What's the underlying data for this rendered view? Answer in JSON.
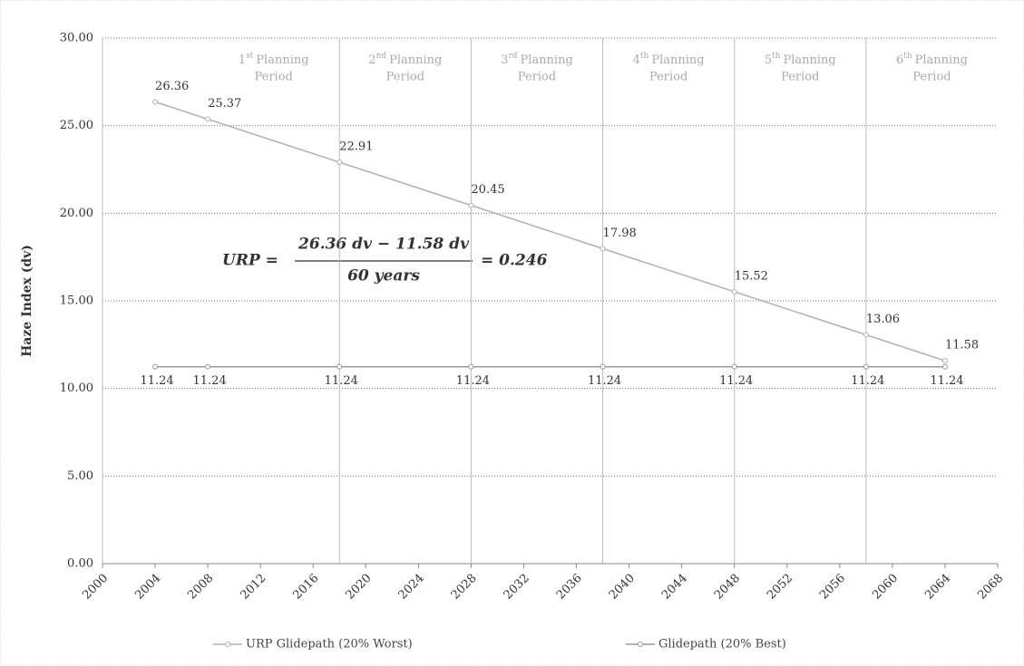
{
  "chart_data": {
    "type": "line",
    "y_label": "Haze Index (dv)",
    "xlim": [
      2000,
      2068
    ],
    "xticks": [
      2000,
      2004,
      2008,
      2012,
      2016,
      2020,
      2024,
      2028,
      2032,
      2036,
      2040,
      2044,
      2048,
      2052,
      2056,
      2060,
      2064,
      2068
    ],
    "ylim": [
      0,
      30
    ],
    "yticks": [
      {
        "value": 0,
        "label": "0.00"
      },
      {
        "value": 5,
        "label": "5.00"
      },
      {
        "value": 10,
        "label": "10.00"
      },
      {
        "value": 15,
        "label": "15.00"
      },
      {
        "value": 20,
        "label": "20.00"
      },
      {
        "value": 25,
        "label": "25.00"
      },
      {
        "value": 30,
        "label": "30.00"
      }
    ],
    "grid": true,
    "legend": "bottom",
    "series": [
      {
        "name": "URP Glidepath (20% Worst)",
        "color": "#b0b0b0",
        "label_side": "above",
        "x": [
          2004,
          2008,
          2018,
          2028,
          2038,
          2048,
          2058,
          2064
        ],
        "values": [
          26.36,
          25.37,
          22.91,
          20.45,
          17.98,
          15.52,
          13.06,
          11.58
        ]
      },
      {
        "name": "Glidepath (20% Best)",
        "color": "#999999",
        "label_side": "below",
        "x": [
          2004,
          2008,
          2018,
          2028,
          2038,
          2048,
          2058,
          2064
        ],
        "values": [
          11.24,
          11.24,
          11.24,
          11.24,
          11.24,
          11.24,
          11.24,
          11.24
        ]
      }
    ],
    "periods": [
      {
        "ordinal": "1",
        "suffix": "st",
        "line1": "Planning",
        "line2": "Period"
      },
      {
        "ordinal": "2",
        "suffix": "nd",
        "line1": "Planning",
        "line2": "Period"
      },
      {
        "ordinal": "3",
        "suffix": "rd",
        "line1": "Planning",
        "line2": "Period"
      },
      {
        "ordinal": "4",
        "suffix": "th",
        "line1": "Planning",
        "line2": "Period"
      },
      {
        "ordinal": "5",
        "suffix": "th",
        "line1": "Planning",
        "line2": "Period"
      },
      {
        "ordinal": "6",
        "suffix": "th",
        "line1": "Planning",
        "line2": "Period"
      }
    ],
    "equation": {
      "lhs": "URP =",
      "numerator": "26.36 dv − 11.58 dv",
      "denominator": "60 years",
      "rhs": "= 0.246"
    }
  }
}
